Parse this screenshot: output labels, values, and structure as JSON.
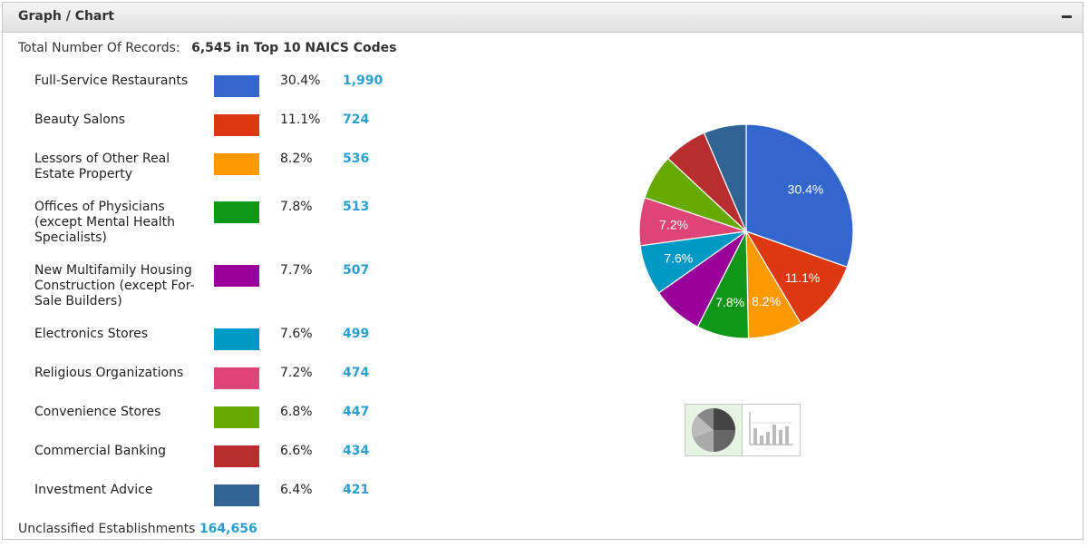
{
  "panel": {
    "title": "Graph / Chart"
  },
  "summary": {
    "total_label": "Total Number Of Records:",
    "total_value": "6,545 in Top 10 NAICS Codes",
    "unclassified_label": "Unclassified Establishments",
    "unclassified_value": "164,656"
  },
  "legend": [
    {
      "name": "Full-Service Restaurants",
      "pct": "30.4%",
      "count": "1,990",
      "color": "#3366cc"
    },
    {
      "name": "Beauty Salons",
      "pct": "11.1%",
      "count": "724",
      "color": "#dc3912"
    },
    {
      "name": "Lessors of Other Real Estate Property",
      "pct": "8.2%",
      "count": "536",
      "color": "#ff9900"
    },
    {
      "name": "Offices of Physicians (except Mental Health Specialists)",
      "pct": "7.8%",
      "count": "513",
      "color": "#109618"
    },
    {
      "name": "New Multifamily Housing Construction (except For-Sale Builders)",
      "pct": "7.7%",
      "count": "507",
      "color": "#990099"
    },
    {
      "name": "Electronics Stores",
      "pct": "7.6%",
      "count": "499",
      "color": "#0099c6"
    },
    {
      "name": "Religious Organizations",
      "pct": "7.2%",
      "count": "474",
      "color": "#dd4477"
    },
    {
      "name": "Convenience Stores",
      "pct": "6.8%",
      "count": "447",
      "color": "#66aa00"
    },
    {
      "name": "Commercial Banking",
      "pct": "6.6%",
      "count": "434",
      "color": "#b82e2e"
    },
    {
      "name": "Investment Advice",
      "pct": "6.4%",
      "count": "421",
      "color": "#316395"
    }
  ],
  "chart_data": {
    "type": "pie",
    "categories": [
      "Full-Service Restaurants",
      "Beauty Salons",
      "Lessors of Other Real Estate Property",
      "Offices of Physicians (except Mental Health Specialists)",
      "New Multifamily Housing Construction (except For-Sale Builders)",
      "Electronics Stores",
      "Religious Organizations",
      "Convenience Stores",
      "Commercial Banking",
      "Investment Advice"
    ],
    "values": [
      1990,
      724,
      536,
      513,
      507,
      499,
      474,
      447,
      434,
      421
    ],
    "colors": [
      "#3366cc",
      "#dc3912",
      "#ff9900",
      "#109618",
      "#990099",
      "#0099c6",
      "#dd4477",
      "#66aa00",
      "#b82e2e",
      "#316395"
    ],
    "slice_labels": [
      "30.4%",
      "11.1%",
      "8.2%",
      "7.8%",
      "",
      "7.6%",
      "7.2%",
      "",
      "",
      ""
    ],
    "legend": "left"
  },
  "view_toggle": {
    "active": "pie",
    "options": [
      "pie-chart-icon",
      "bar-chart-icon"
    ]
  }
}
